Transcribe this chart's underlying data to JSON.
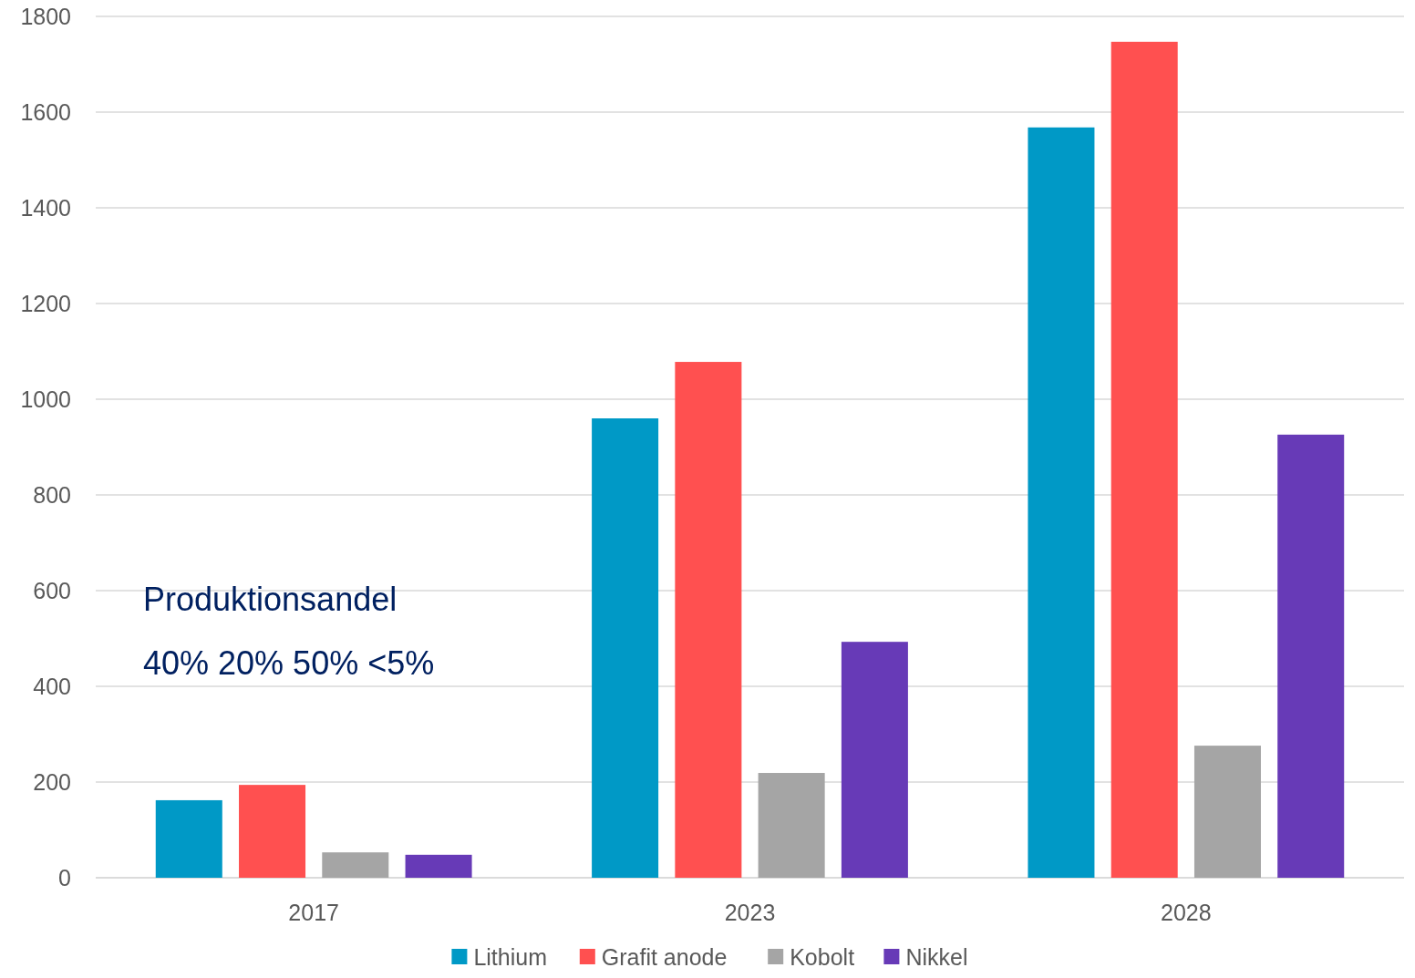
{
  "chart_data": {
    "type": "bar",
    "categories": [
      "2017",
      "2023",
      "2028"
    ],
    "series": [
      {
        "name": "Lithium",
        "color": "#0099c6",
        "values": [
          162,
          960,
          1568
        ]
      },
      {
        "name": "Grafit anode",
        "color": "#ff5050",
        "values": [
          194,
          1078,
          1747
        ]
      },
      {
        "name": "Kobolt",
        "color": "#a5a5a5",
        "values": [
          53,
          219,
          276
        ]
      },
      {
        "name": "Nikkel",
        "color": "#673ab7",
        "values": [
          48,
          493,
          926
        ]
      }
    ],
    "ylim": [
      0,
      1800
    ],
    "yticks": [
      0,
      200,
      400,
      600,
      800,
      1000,
      1200,
      1400,
      1600,
      1800
    ],
    "grid": "y",
    "legend": "bottom",
    "annotations": [
      "Produktionsandel",
      "40%  20%  50%  <5%"
    ]
  }
}
